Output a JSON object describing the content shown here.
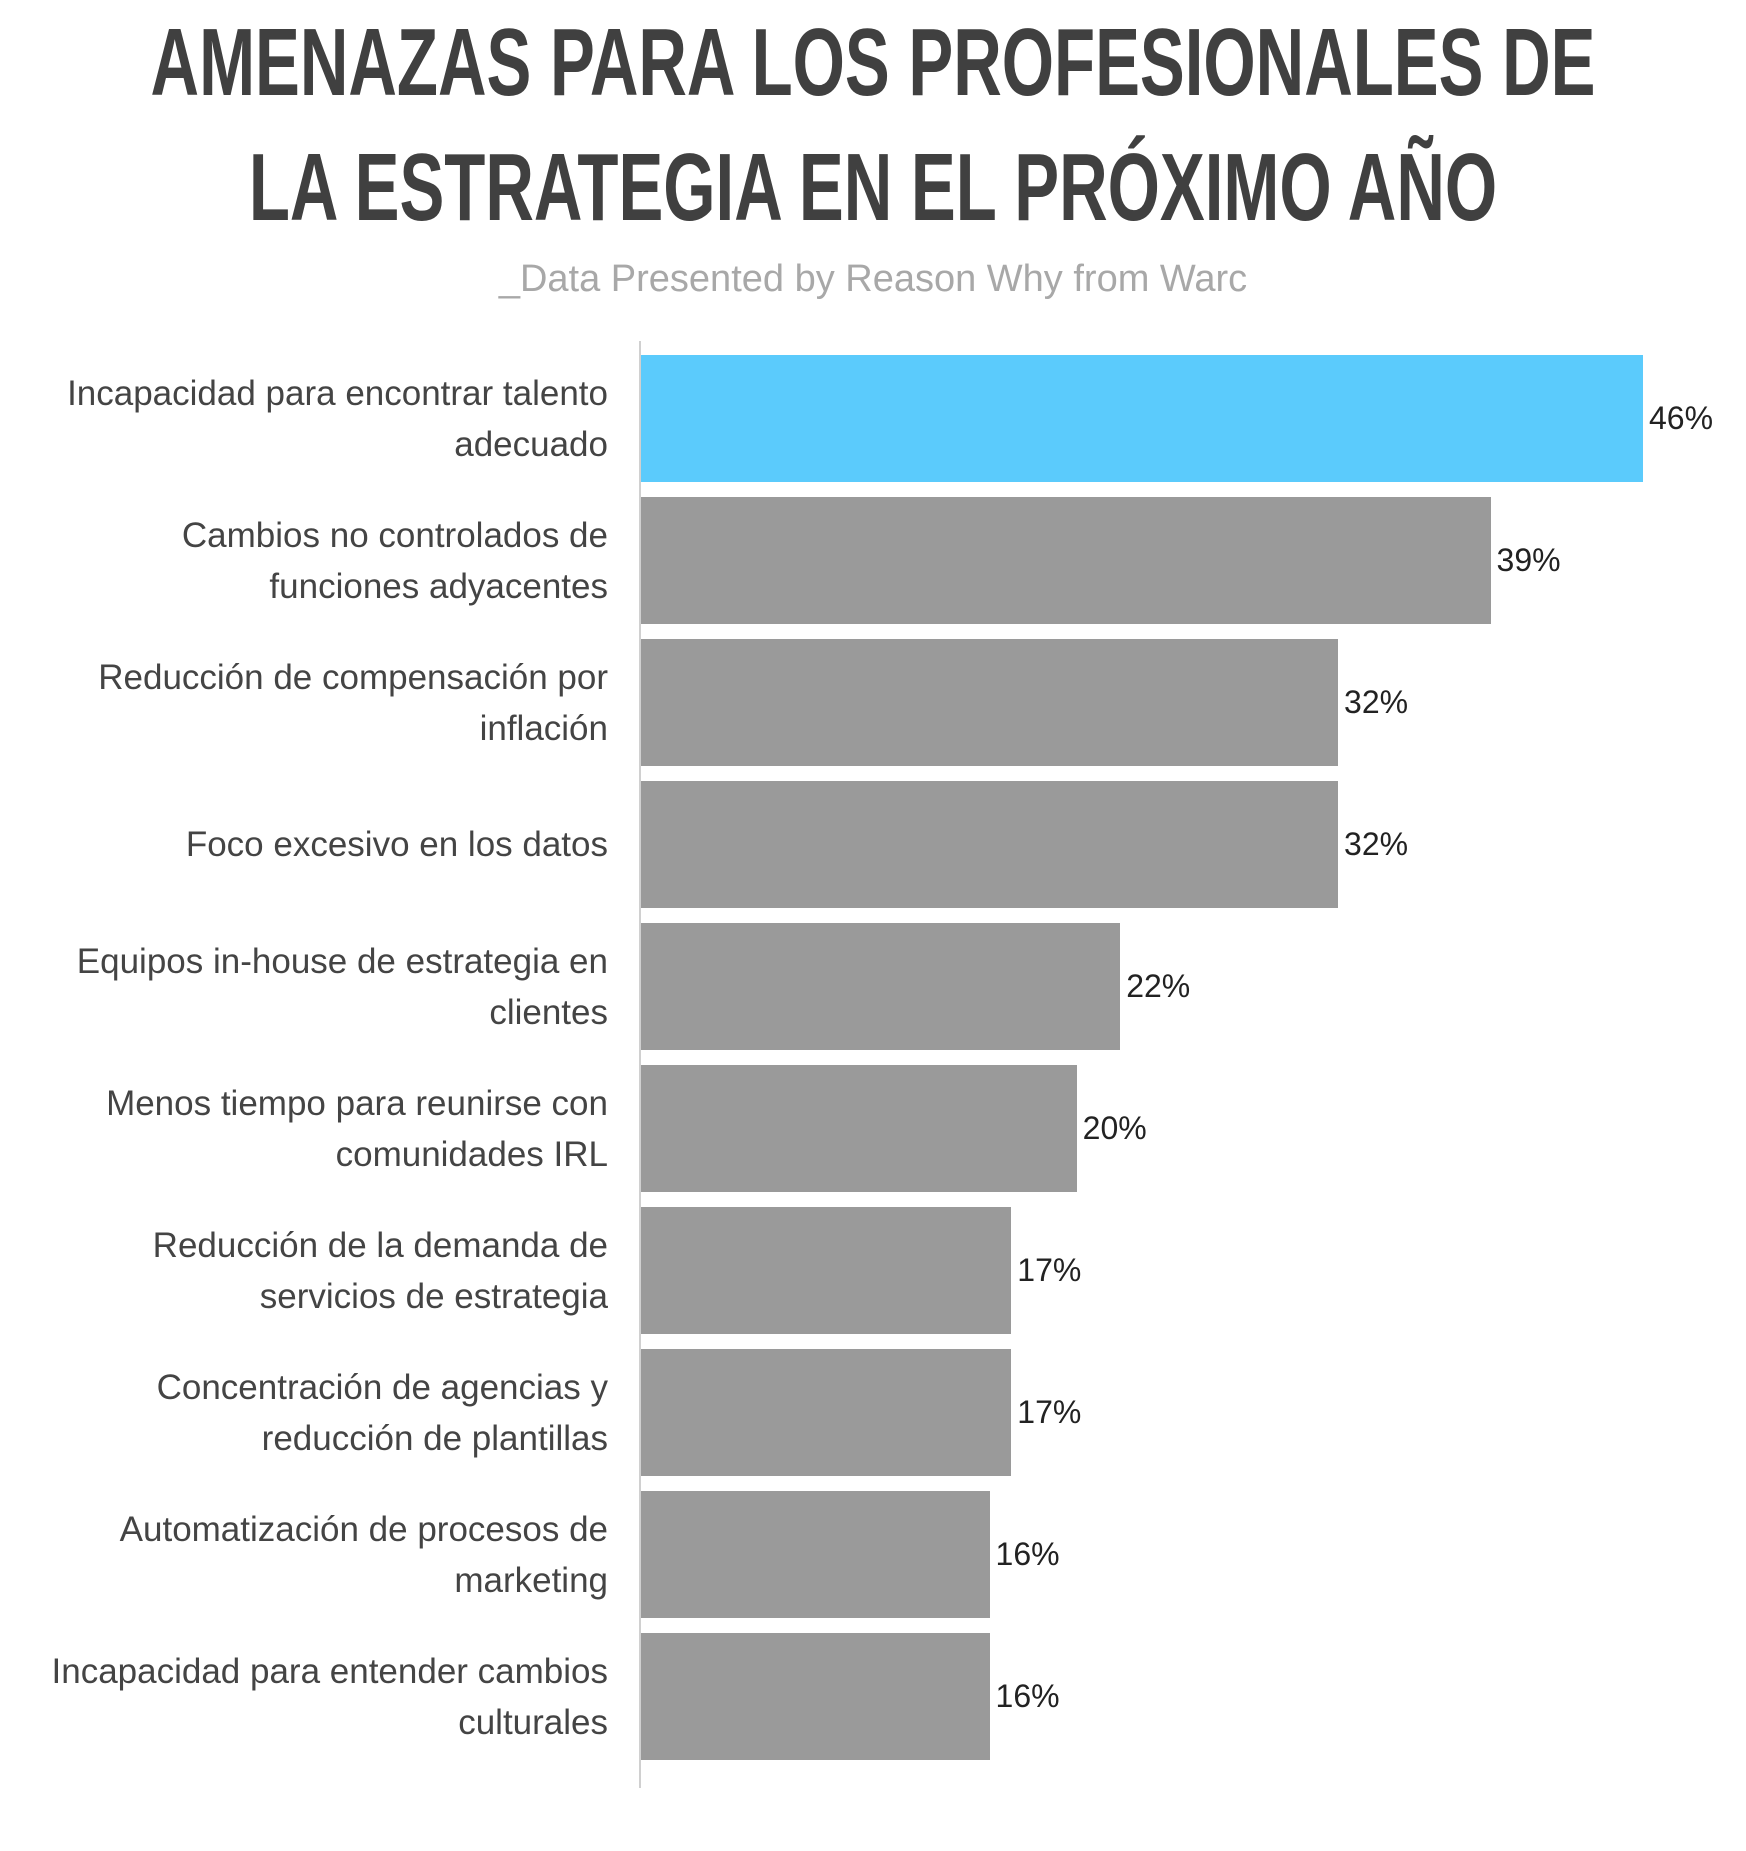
{
  "chart_data": {
    "type": "barh",
    "title": "AMENAZAS PARA LOS PROFESIONALES DE LA ESTRATEGIA EN EL PRÓXIMO AÑO",
    "subtitle": "_Data Presented by Reason Why from Warc",
    "categories": [
      "Incapacidad para encontrar talento adecuado",
      "Cambios no controlados de funciones adyacentes",
      "Reducción de compensación por inflación",
      "Foco excesivo en los datos",
      "Equipos in-house de estrategia en clientes",
      "Menos tiempo para reunirse con comunidades IRL",
      "Reducción de la demanda de servicios de estrategia",
      "Concentración de agencias y reducción de plantillas",
      "Automatización de procesos de marketing",
      "Incapacidad para entender cambios culturales"
    ],
    "values": [
      46,
      39,
      32,
      32,
      22,
      20,
      17,
      17,
      16,
      16
    ],
    "value_labels": [
      "46%",
      "39%",
      "32%",
      "32%",
      "22%",
      "20%",
      "17%",
      "17%",
      "16%",
      "16%"
    ],
    "colors": [
      "#5bcbfc",
      "#9a9a9a",
      "#9a9a9a",
      "#9a9a9a",
      "#9a9a9a",
      "#9a9a9a",
      "#9a9a9a",
      "#9a9a9a",
      "#9a9a9a",
      "#9a9a9a"
    ]
  }
}
